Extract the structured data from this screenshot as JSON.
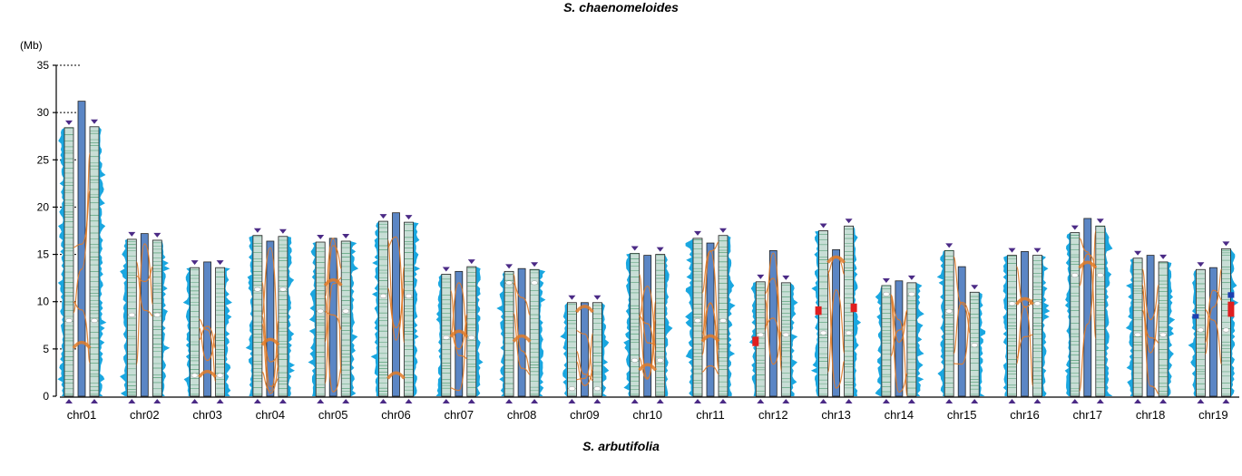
{
  "title_top": "S. chaenomeloides",
  "title_bottom": "S. arbutifolia",
  "unit_label": "(Mb)",
  "y_ticks": [
    0,
    5,
    10,
    15,
    20,
    25,
    30,
    35
  ],
  "ylim": [
    0,
    35
  ],
  "colors": {
    "sc_bar": "#c8ded6",
    "sa_bar": "#5b86c5",
    "stripe": "#2e8b57",
    "density": "#1aa7e0",
    "link": "#e07b28",
    "telomere": "#4b2a86",
    "centromere": "#ffffff",
    "inversion_red": "#e01f1f",
    "inversion_blue": "#1f3fb0"
  },
  "chromosomes": [
    {
      "name": "chr01",
      "left": 28.4,
      "mid": 31.2,
      "right": 28.5,
      "cen_left": 8.0,
      "cen_right": 8.0
    },
    {
      "name": "chr02",
      "left": 16.6,
      "mid": 17.2,
      "right": 16.5,
      "cen_left": 8.6,
      "cen_right": 8.6
    },
    {
      "name": "chr03",
      "left": 13.6,
      "mid": 14.2,
      "right": 13.6,
      "cen_left": 2.2,
      "cen_right": 2.2
    },
    {
      "name": "chr04",
      "left": 17.0,
      "mid": 16.4,
      "right": 16.9,
      "cen_left": 11.3,
      "cen_right": 11.3
    },
    {
      "name": "chr05",
      "left": 16.3,
      "mid": 16.7,
      "right": 16.4,
      "cen_left": 9.0,
      "cen_right": 9.0
    },
    {
      "name": "chr06",
      "left": 18.5,
      "mid": 19.4,
      "right": 18.4,
      "cen_left": 10.6,
      "cen_right": 10.6
    },
    {
      "name": "chr07",
      "left": 12.9,
      "mid": 13.2,
      "right": 13.7,
      "cen_left": 6.2,
      "cen_right": 6.2
    },
    {
      "name": "chr08",
      "left": 13.2,
      "mid": 13.5,
      "right": 13.4,
      "cen_left": 12.0,
      "cen_right": 12.0
    },
    {
      "name": "chr09",
      "left": 9.9,
      "mid": 9.9,
      "right": 9.9,
      "cen_left": 0.8,
      "cen_right": 0.8
    },
    {
      "name": "chr10",
      "left": 15.1,
      "mid": 14.9,
      "right": 15.0,
      "cen_left": 3.8,
      "cen_right": 3.8
    },
    {
      "name": "chr11",
      "left": 16.7,
      "mid": 16.2,
      "right": 17.0,
      "cen_left": 8.0,
      "cen_right": 8.0
    },
    {
      "name": "chr12",
      "left": 12.1,
      "mid": 15.4,
      "right": 12.0,
      "cen_left": 6.5,
      "cen_right": 6.5
    },
    {
      "name": "chr13",
      "left": 17.5,
      "mid": 15.5,
      "right": 18.0,
      "cen_left": 6.7,
      "cen_right": 6.7
    },
    {
      "name": "chr14",
      "left": 11.7,
      "mid": 12.2,
      "right": 12.0,
      "cen_left": 10.8,
      "cen_right": 10.8
    },
    {
      "name": "chr15",
      "left": 15.4,
      "mid": 13.7,
      "right": 11.0,
      "cen_left": 9.0,
      "cen_right": 5.4
    },
    {
      "name": "chr16",
      "left": 14.9,
      "mid": 15.3,
      "right": 14.9,
      "cen_left": 9.8,
      "cen_right": 9.8
    },
    {
      "name": "chr17",
      "left": 17.3,
      "mid": 18.8,
      "right": 18.0,
      "cen_left": 12.8,
      "cen_right": 12.8
    },
    {
      "name": "chr18",
      "left": 14.6,
      "mid": 14.9,
      "right": 14.2,
      "cen_left": 6.5,
      "cen_right": 6.5
    },
    {
      "name": "chr19",
      "left": 13.4,
      "mid": 13.6,
      "right": 15.6,
      "cen_left": 7.0,
      "cen_right": 7.0
    }
  ]
}
